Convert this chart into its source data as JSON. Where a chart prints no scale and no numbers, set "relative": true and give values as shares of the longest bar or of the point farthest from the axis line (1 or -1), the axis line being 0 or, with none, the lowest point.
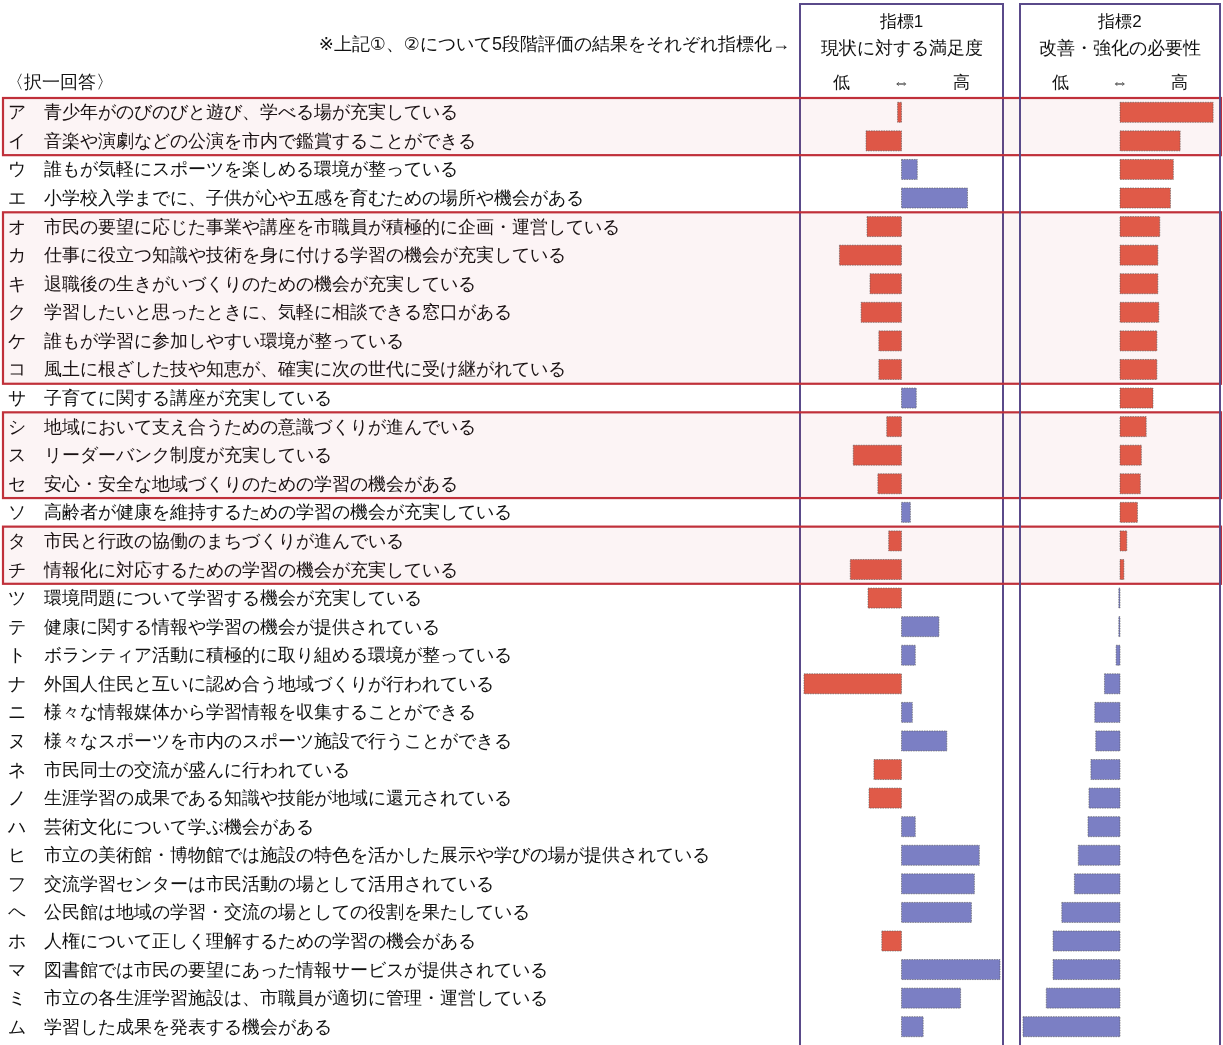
{
  "chart_data": [
    {
      "type": "bar",
      "orientation": "horizontal",
      "relative": true,
      "title": "指標1",
      "subtitle": "現状に対する満足度",
      "xlabel": "低 ⇔ 高",
      "tick_labels": "y",
      "annotations": [
        "※上記①、②について5段階評価の結果をそれぞれ指標化→",
        "〈択一回答〉"
      ],
      "categories": [
        "ア　青少年がのびのびと遊び、学べる場が充実している",
        "イ　音楽や演劇などの公演を市内で鑑賞することができる",
        "ウ　誰もが気軽にスポーツを楽しめる環境が整っている",
        "エ　小学校入学までに、子供が心や五感を育むための場所や機会がある",
        "オ　市民の要望に応じた事業や講座を市職員が積極的に企画・運営している",
        "カ　仕事に役立つ知識や技術を身に付ける学習の機会が充実している",
        "キ　退職後の生きがいづくりのための機会が充実している",
        "ク　学習したいと思ったときに、気軽に相談できる窓口がある",
        "ケ　誰もが学習に参加しやすい環境が整っている",
        "コ　風土に根ざした技や知恵が、確実に次の世代に受け継がれている",
        "サ　子育てに関する講座が充実している",
        "シ　地域において支え合うための意識づくりが進んでいる",
        "ス　リーダーバンク制度が充実している",
        "セ　安心・安全な地域づくりのための学習の機会がある",
        "ソ　高齢者が健康を維持するための学習の機会が充実している",
        "タ　市民と行政の協働のまちづくりが進んでいる",
        "チ　情報化に対応するための学習の機会が充実している",
        "ツ　環境問題について学習する機会が充実している",
        "テ　健康に関する情報や学習の機会が提供されている",
        "ト　ボランティア活動に積極的に取り組める環境が整っている",
        "ナ　外国人住民と互いに認め合う地域づくりが行われている",
        "ニ　様々な情報媒体から学習情報を収集することができる",
        "ヌ　様々なスポーツを市内のスポーツ施設で行うことができる",
        "ネ　市民同士の交流が盛んに行われている",
        "ノ　生涯学習の成果である知識や技能が地域に還元されている",
        "ハ　芸術文化について学ぶ機会がある",
        "ヒ　市立の美術館・博物館では施設の特色を活かした展示や学びの場が提供されている",
        "フ　交流学習センターは市民活動の場として活用されている",
        "ヘ　公民館は地域の学習・交流の場としての役割を果たしている",
        "ホ　人権について正しく理解するための学習の機会がある",
        "マ　図書館では市民の要望にあった情報サービスが提供されている",
        "ミ　市立の各生涯学習施設は、市職員が適切に管理・運営している",
        "ム　学習した成果を発表する機会がある"
      ],
      "values": [
        -0.04,
        -0.36,
        0.16,
        0.67,
        -0.35,
        -0.63,
        -0.32,
        -0.41,
        -0.23,
        -0.23,
        0.15,
        -0.15,
        -0.49,
        -0.24,
        0.09,
        -0.13,
        -0.52,
        -0.34,
        0.38,
        0.14,
        -0.99,
        0.11,
        0.46,
        -0.28,
        -0.33,
        0.14,
        0.79,
        0.74,
        0.71,
        -0.2,
        1,
        0.6,
        0.22
      ],
      "colors": [
        "#e05a48",
        "#e05a48",
        "#7b7fc4",
        "#7b7fc4",
        "#e05a48",
        "#e05a48",
        "#e05a48",
        "#e05a48",
        "#e05a48",
        "#e05a48",
        "#7b7fc4",
        "#e05a48",
        "#e05a48",
        "#e05a48",
        "#7b7fc4",
        "#e05a48",
        "#e05a48",
        "#e05a48",
        "#7b7fc4",
        "#7b7fc4",
        "#e05a48",
        "#7b7fc4",
        "#7b7fc4",
        "#e05a48",
        "#e05a48",
        "#7b7fc4",
        "#7b7fc4",
        "#7b7fc4",
        "#7b7fc4",
        "#e05a48",
        "#7b7fc4",
        "#7b7fc4",
        "#7b7fc4"
      ],
      "bands": [
        {
          "axis": "y",
          "from": "ア　青少年がのびのびと遊び、学べる場が充実している",
          "to": "イ　音楽や演劇などの公演を市内で鑑賞することができる",
          "color": "#c0303a"
        },
        {
          "axis": "y",
          "from": "オ　市民の要望に応じた事業や講座を市職員が積極的に企画・運営している",
          "to": "コ　風土に根ざした技や知恵が、確実に次の世代に受け継がれている",
          "color": "#c0303a"
        },
        {
          "axis": "y",
          "from": "シ　地域において支え合うための意識づくりが進んでいる",
          "to": "セ　安心・安全な地域づくりのための学習の機会がある",
          "color": "#c0303a"
        },
        {
          "axis": "y",
          "from": "タ　市民と行政の協働のまちづくりが進んでいる",
          "to": "チ　情報化に対応するための学習の機会が充実している",
          "color": "#c0303a"
        }
      ]
    },
    {
      "type": "bar",
      "orientation": "horizontal",
      "relative": true,
      "title": "指標2",
      "subtitle": "改善・強化の必要性",
      "xlabel": "低 ⇔ 高",
      "categories": [
        null,
        null,
        null,
        null,
        null,
        null,
        null,
        null,
        null,
        null,
        null,
        null,
        null,
        null,
        null,
        null,
        null,
        null,
        null,
        null,
        null,
        null,
        null,
        null,
        null,
        null,
        null,
        null,
        null,
        null,
        null,
        null,
        null
      ],
      "values": [
        0.96,
        0.62,
        0.55,
        0.52,
        0.41,
        0.39,
        0.39,
        0.4,
        0.38,
        0.38,
        0.34,
        0.27,
        0.22,
        0.21,
        0.18,
        0.07,
        0.04,
        -0.01,
        -0.01,
        -0.04,
        -0.16,
        -0.26,
        -0.25,
        -0.3,
        -0.32,
        -0.33,
        -0.43,
        -0.47,
        -0.6,
        -0.69,
        -0.69,
        -0.76,
        -1
      ],
      "colors": [
        "#e05a48",
        "#e05a48",
        "#e05a48",
        "#e05a48",
        "#e05a48",
        "#e05a48",
        "#e05a48",
        "#e05a48",
        "#e05a48",
        "#e05a48",
        "#e05a48",
        "#e05a48",
        "#e05a48",
        "#e05a48",
        "#e05a48",
        "#e05a48",
        "#e05a48",
        "#7b7fc4",
        "#7b7fc4",
        "#7b7fc4",
        "#7b7fc4",
        "#7b7fc4",
        "#7b7fc4",
        "#7b7fc4",
        "#7b7fc4",
        "#7b7fc4",
        "#7b7fc4",
        "#7b7fc4",
        "#7b7fc4",
        "#7b7fc4",
        "#7b7fc4",
        "#7b7fc4",
        "#7b7fc4"
      ]
    }
  ]
}
